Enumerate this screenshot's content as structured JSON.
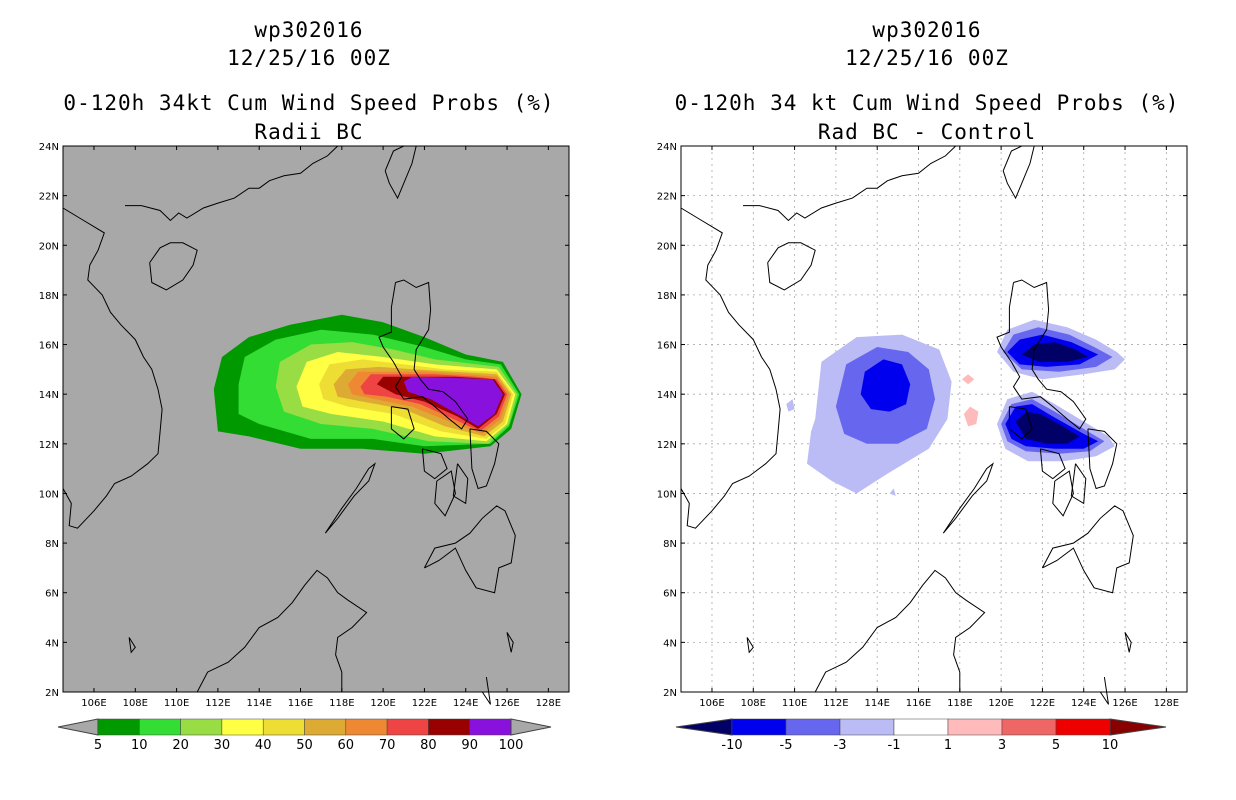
{
  "left_panel": {
    "title_line1": "wp302016",
    "title_line2": "12/25/16 00Z",
    "title_line3": "0-120h 34kt Cum Wind Speed Probs (%)",
    "title_line4": "Radii BC",
    "background_color": "#a8a8a8",
    "colorbar": {
      "colors": [
        "#009900",
        "#33dd33",
        "#99dd44",
        "#ffff44",
        "#eedd33",
        "#ddaa33",
        "#ee8833",
        "#ee4444",
        "#990000",
        "#8811dd"
      ],
      "labels": [
        "5",
        "10",
        "20",
        "30",
        "40",
        "50",
        "60",
        "70",
        "80",
        "90",
        "100"
      ]
    }
  },
  "right_panel": {
    "title_line1": "wp302016",
    "title_line2": "12/25/16 00Z",
    "title_line3": "0-120h 34 kt Cum Wind Speed Probs (%)",
    "title_line4": "Rad BC - Control",
    "background_color": "#ffffff",
    "colorbar": {
      "colors": [
        "#000066",
        "#0000ee",
        "#6666ee",
        "#bbbbf5",
        "#ffffff",
        "#ffbbbb",
        "#ee6666",
        "#ee0000",
        "#880000"
      ],
      "labels": [
        "-10",
        "-5",
        "-3",
        "-1",
        "1",
        "3",
        "5",
        "10"
      ]
    }
  },
  "axes": {
    "lat_labels": [
      "24N",
      "22N",
      "20N",
      "18N",
      "16N",
      "14N",
      "12N",
      "10N",
      "8N",
      "6N",
      "4N",
      "2N"
    ],
    "lon_labels": [
      "106E",
      "108E",
      "110E",
      "112E",
      "114E",
      "116E",
      "118E",
      "120E",
      "122E",
      "124E",
      "126E",
      "128E"
    ],
    "lat_range": [
      2,
      24
    ],
    "lon_range": [
      104.5,
      129
    ]
  },
  "chart_data": [
    {
      "type": "heatmap",
      "title": "0-120h 34kt Cum Wind Speed Probs (%) - Radii BC",
      "storm": "wp302016",
      "valid": "12/25/16 00Z",
      "units": "%",
      "levels": [
        5,
        10,
        20,
        30,
        40,
        50,
        60,
        70,
        80,
        90,
        100
      ],
      "max_region": {
        "lon_center": 123.5,
        "lat_center": 14.0,
        "value": 100
      },
      "swath_lon_range": [
        111.8,
        126.7
      ],
      "swath_lat_range": [
        11.8,
        16.8
      ]
    },
    {
      "type": "heatmap",
      "title": "0-120h 34 kt Cum Wind Speed Probs (%) - Rad BC - Control",
      "storm": "wp302016",
      "valid": "12/25/16 00Z",
      "units": "%",
      "levels": [
        -10,
        -5,
        -3,
        -1,
        1,
        3,
        5,
        10
      ],
      "negative_centers": [
        {
          "lon": 114.2,
          "lat": 14.2,
          "value": -5
        },
        {
          "lon": 122.5,
          "lat": 15.5,
          "value": -10
        },
        {
          "lon": 122.5,
          "lat": 12.5,
          "value": -10
        }
      ],
      "positive_centers": [
        {
          "lon": 118.5,
          "lat": 13.3,
          "value": 1
        }
      ]
    }
  ]
}
